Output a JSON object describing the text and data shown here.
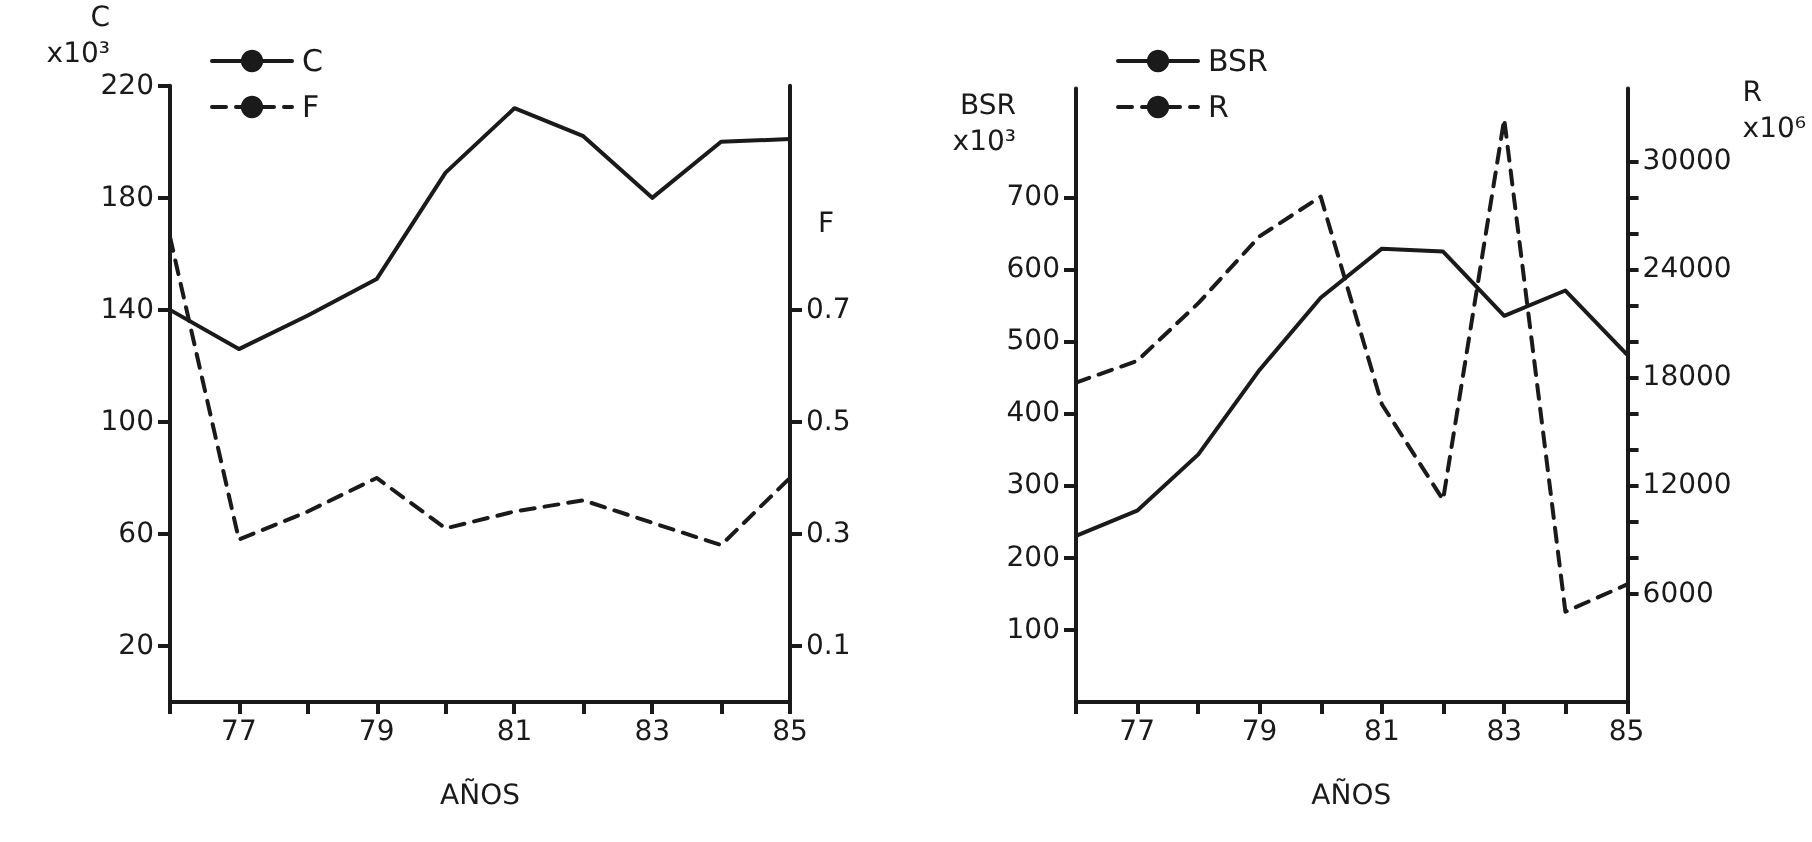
{
  "chart_data": [
    {
      "type": "line",
      "xlabel": "AÑOS",
      "ylabel": "C\nx10³",
      "y2label": "F",
      "x": [
        76,
        77,
        78,
        79,
        80,
        81,
        82,
        83,
        84,
        85
      ],
      "series": [
        {
          "name": "C",
          "color": "#1a1a1a",
          "line_style": "solid",
          "values": [
            140,
            126,
            138,
            151,
            189,
            212,
            202,
            180,
            200,
            201
          ]
        },
        {
          "name": "F",
          "color": "#1a1a1a",
          "line_style": "dashed",
          "axis": "y2",
          "values": [
            0.83,
            0.29,
            0.34,
            0.4,
            0.31,
            0.34,
            0.36,
            0.32,
            0.28,
            0.4
          ]
        }
      ],
      "xlim": [
        76,
        85
      ],
      "xticks": [
        {
          "value": 76,
          "label": null
        },
        77,
        {
          "value": 78,
          "label": null
        },
        79,
        {
          "value": 80,
          "label": null
        },
        81,
        {
          "value": 82,
          "label": null
        },
        83,
        {
          "value": 84,
          "label": null
        },
        85
      ],
      "ylim": [
        0,
        220
      ],
      "yticks": [
        20,
        60,
        100,
        140,
        180,
        220
      ],
      "y2lim": [
        0,
        1.1
      ],
      "y2ticks": [
        {
          "value": 0.1,
          "label": "0.1"
        },
        {
          "value": 0.3,
          "label": "0.3"
        },
        {
          "value": 0.5,
          "label": "0.5"
        },
        {
          "value": 0.7,
          "label": "0.7"
        }
      ],
      "marker": "none",
      "grid": false,
      "legend": "top left"
    },
    {
      "type": "line",
      "xlabel": "AÑOS",
      "ylabel": "BSR\nx10³",
      "y2label": "R\nx10⁶",
      "x": [
        76,
        77,
        78,
        79,
        80,
        81,
        82,
        83,
        84,
        85
      ],
      "series": [
        {
          "name": "BSR",
          "color": "#1a1a1a",
          "line_style": "solid",
          "values": [
            230,
            265,
            343,
            460,
            560,
            628,
            624,
            535,
            570,
            482
          ]
        },
        {
          "name": "R",
          "color": "#1a1a1a",
          "line_style": "dashed",
          "axis": "y2",
          "values": [
            17700,
            18900,
            22100,
            25800,
            28000,
            16500,
            11200,
            32300,
            5000,
            6500
          ]
        }
      ],
      "xlim": [
        76,
        85
      ],
      "xticks": [
        {
          "value": 76,
          "label": null
        },
        77,
        {
          "value": 78,
          "label": null
        },
        79,
        {
          "value": 80,
          "label": null
        },
        81,
        {
          "value": 82,
          "label": null
        },
        83,
        {
          "value": 84,
          "label": null
        },
        85
      ],
      "ylim": [
        0,
        850
      ],
      "yticks": [
        100,
        200,
        300,
        400,
        500,
        600,
        700
      ],
      "y2lim": [
        0,
        34000
      ],
      "y2ticks": [
        6000,
        {
          "value": 8000,
          "label": null
        },
        {
          "value": 10000,
          "label": null
        },
        12000,
        {
          "value": 14000,
          "label": null
        },
        {
          "value": 16000,
          "label": null
        },
        18000,
        {
          "value": 20000,
          "label": null
        },
        {
          "value": 22000,
          "label": null
        },
        24000,
        {
          "value": 26000,
          "label": null
        },
        {
          "value": 28000,
          "label": null
        },
        30000
      ],
      "marker": "none",
      "grid": false,
      "legend": "top left"
    }
  ]
}
